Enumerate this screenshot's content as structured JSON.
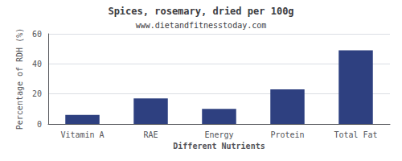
{
  "chart_data": {
    "type": "bar",
    "title": "Spices, rosemary, dried per 100g",
    "subtitle": "www.dietandfitnesstoday.com",
    "xlabel": "Different Nutrients",
    "ylabel": "Percentage of RDH (%)",
    "categories": [
      "Vitamin A",
      "RAE",
      "Energy",
      "Protein",
      "Total Fat"
    ],
    "values": [
      6,
      17,
      10,
      23,
      49
    ],
    "color": "#2e4080",
    "ylim": [
      0,
      60
    ],
    "yticks": [
      0,
      20,
      40,
      60
    ],
    "grid": true
  }
}
